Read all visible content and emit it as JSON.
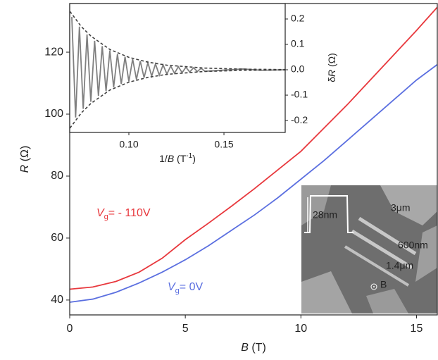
{
  "chart_data": [
    {
      "type": "line",
      "x_label": [
        "B",
        " (T)"
      ],
      "y_label": [
        "R",
        " (Ω)"
      ],
      "x": [
        0,
        1,
        2,
        3,
        4,
        5,
        6,
        7,
        8,
        9,
        10,
        11,
        12,
        13,
        14,
        15,
        15.9
      ],
      "xlim": [
        0,
        15.9
      ],
      "xticks": [
        0,
        5,
        10,
        15
      ],
      "ylim": [
        35.2,
        135.7
      ],
      "yticks": [
        40,
        60,
        80,
        100,
        120
      ],
      "series": [
        {
          "label": [
            "V",
            "g",
            "= - 110V"
          ],
          "color": "#e8383d",
          "values": [
            43.5,
            44.2,
            46.0,
            49.0,
            53.5,
            59.5,
            64.8,
            70.3,
            76,
            82,
            88,
            95.5,
            103,
            111,
            119,
            127,
            134.5
          ]
        },
        {
          "label": [
            "V",
            "g",
            "= 0V"
          ],
          "color": "#5b6fe0",
          "values": [
            39.3,
            40.3,
            42.5,
            45.5,
            49,
            53,
            57.5,
            62.5,
            67.5,
            73,
            79,
            85,
            91.5,
            98,
            104.5,
            111,
            116
          ]
        }
      ],
      "image_labels": [
        "28nm",
        "3μm",
        "600nm",
        "1.4μm",
        "B"
      ]
    },
    {
      "type": "line",
      "x_label": [
        "1/",
        "B",
        " (T",
        "-1",
        ")"
      ],
      "y2_label": [
        "δ",
        "R",
        " (Ω)"
      ],
      "xlim": [
        0.0689,
        0.1822
      ],
      "xticks": [
        {
          "value": 0.1,
          "label": "0.10"
        },
        {
          "value": 0.15,
          "label": "0.15"
        }
      ],
      "y2lim": [
        -0.247,
        0.261
      ],
      "y2ticks": [
        -0.2,
        -0.1,
        {
          "value": 0,
          "label": "0.0"
        },
        0.1,
        0.2
      ],
      "series": [
        {
          "axis": "y2",
          "color": "#808080",
          "style": "solid",
          "x": [
            0.07,
            0.072,
            0.074,
            0.076,
            0.078,
            0.08,
            0.082,
            0.084,
            0.086,
            0.088,
            0.09,
            0.092,
            0.094,
            0.096,
            0.098,
            0.1,
            0.102,
            0.104,
            0.106,
            0.108,
            0.11,
            0.112,
            0.114,
            0.116,
            0.118,
            0.12,
            0.122,
            0.124,
            0.126,
            0.128,
            0.13,
            0.132,
            0.134,
            0.136,
            0.138,
            0.14,
            0.16,
            0.17,
            0.182
          ],
          "values": [
            0.208,
            -0.188,
            0.17,
            -0.154,
            0.139,
            -0.126,
            0.114,
            -0.103,
            0.093,
            -0.084,
            0.076,
            -0.069,
            0.062,
            -0.056,
            0.051,
            -0.046,
            0.042,
            -0.038,
            0.034,
            -0.031,
            0.028,
            -0.025,
            0.023,
            -0.021,
            0.019,
            -0.017,
            0.015,
            -0.014,
            0.012,
            -0.011,
            0.01,
            -0.009,
            0.008,
            -0.007,
            0.006,
            -0.006,
            0.003,
            -0.002,
            0
          ]
        },
        {
          "axis": "y2",
          "color": "#404040",
          "style": "dashed",
          "x": [
            0.069,
            0.075,
            0.08,
            0.09,
            0.1,
            0.11,
            0.12,
            0.14,
            0.16,
            0.182
          ],
          "values": [
            0.23,
            0.17,
            0.133,
            0.08,
            0.049,
            0.03,
            0.018,
            0.0066,
            0.0024,
            0.0008
          ]
        },
        {
          "axis": "y2",
          "color": "#404040",
          "style": "dashed",
          "x": [
            0.069,
            0.075,
            0.08,
            0.09,
            0.1,
            0.11,
            0.12,
            0.14,
            0.16,
            0.182
          ],
          "values": [
            -0.23,
            -0.17,
            -0.133,
            -0.08,
            -0.049,
            -0.03,
            -0.018,
            -0.0066,
            -0.0024,
            -0.0008
          ]
        }
      ]
    }
  ]
}
